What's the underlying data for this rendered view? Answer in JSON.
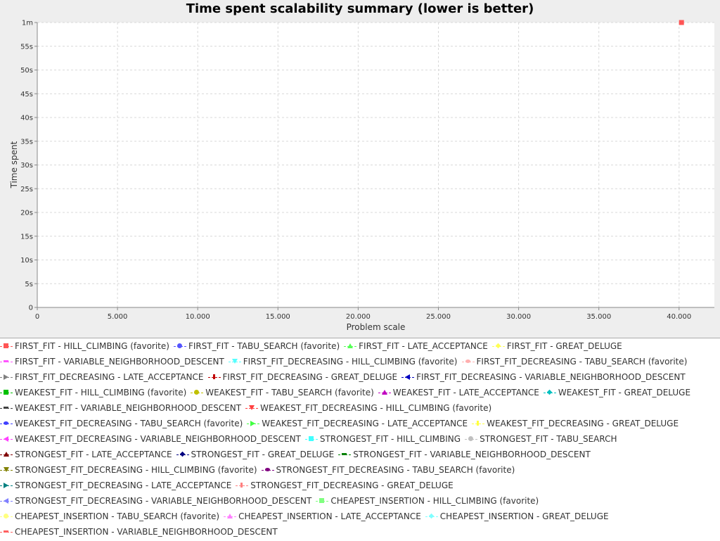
{
  "chart_data": {
    "type": "scatter",
    "title": "Time spent scalability summary (lower is better)",
    "xlabel": "Problem scale",
    "ylabel": "Time spent",
    "xlim": [
      0,
      42200
    ],
    "ylim": [
      0,
      60
    ],
    "x_ticks": [
      {
        "v": 0,
        "label": "0"
      },
      {
        "v": 5000,
        "label": "5.000"
      },
      {
        "v": 10000,
        "label": "10.000"
      },
      {
        "v": 15000,
        "label": "15.000"
      },
      {
        "v": 20000,
        "label": "20.000"
      },
      {
        "v": 25000,
        "label": "25.000"
      },
      {
        "v": 30000,
        "label": "30.000"
      },
      {
        "v": 35000,
        "label": "35.000"
      },
      {
        "v": 40000,
        "label": "40.000"
      }
    ],
    "y_ticks": [
      {
        "v": 0,
        "label": "0"
      },
      {
        "v": 5,
        "label": "5s"
      },
      {
        "v": 10,
        "label": "10s"
      },
      {
        "v": 15,
        "label": "15s"
      },
      {
        "v": 20,
        "label": "20s"
      },
      {
        "v": 25,
        "label": "25s"
      },
      {
        "v": 30,
        "label": "30s"
      },
      {
        "v": 35,
        "label": "35s"
      },
      {
        "v": 40,
        "label": "40s"
      },
      {
        "v": 45,
        "label": "45s"
      },
      {
        "v": 50,
        "label": "50s"
      },
      {
        "v": 55,
        "label": "55s"
      },
      {
        "v": 60,
        "label": "1m"
      }
    ],
    "grid": true,
    "legend_placement": "bottom",
    "series": [
      {
        "name": "FIRST_FIT - HILL_CLIMBING (favorite)",
        "color": "#ff5555",
        "marker": "square",
        "points": [
          [
            40150,
            60
          ]
        ]
      },
      {
        "name": "FIRST_FIT - TABU_SEARCH (favorite)",
        "color": "#5555ff",
        "marker": "circle",
        "points": []
      },
      {
        "name": "FIRST_FIT - LATE_ACCEPTANCE",
        "color": "#55ff55",
        "marker": "triangle-up",
        "points": []
      },
      {
        "name": "FIRST_FIT - GREAT_DELUGE",
        "color": "#ffff55",
        "marker": "diamond",
        "points": []
      },
      {
        "name": "FIRST_FIT - VARIABLE_NEIGHBORHOOD_DESCENT",
        "color": "#ff55ff",
        "marker": "rect-h",
        "points": []
      },
      {
        "name": "FIRST_FIT_DECREASING - HILL_CLIMBING (favorite)",
        "color": "#55ffff",
        "marker": "triangle-down",
        "points": []
      },
      {
        "name": "FIRST_FIT_DECREASING - TABU_SEARCH (favorite)",
        "color": "#ffafaf",
        "marker": "ellipse",
        "points": []
      },
      {
        "name": "FIRST_FIT_DECREASING - LATE_ACCEPTANCE",
        "color": "#808080",
        "marker": "triangle-right",
        "points": []
      },
      {
        "name": "FIRST_FIT_DECREASING - GREAT_DELUGE",
        "color": "#c00000",
        "marker": "rect-v",
        "points": []
      },
      {
        "name": "FIRST_FIT_DECREASING - VARIABLE_NEIGHBORHOOD_DESCENT",
        "color": "#0000c0",
        "marker": "triangle-left",
        "points": []
      },
      {
        "name": "WEAKEST_FIT - HILL_CLIMBING (favorite)",
        "color": "#00c000",
        "marker": "square",
        "points": []
      },
      {
        "name": "WEAKEST_FIT - TABU_SEARCH (favorite)",
        "color": "#c0c000",
        "marker": "circle",
        "points": []
      },
      {
        "name": "WEAKEST_FIT - LATE_ACCEPTANCE",
        "color": "#c000c0",
        "marker": "triangle-up",
        "points": []
      },
      {
        "name": "WEAKEST_FIT - GREAT_DELUGE",
        "color": "#00c0c0",
        "marker": "diamond",
        "points": []
      },
      {
        "name": "WEAKEST_FIT - VARIABLE_NEIGHBORHOOD_DESCENT",
        "color": "#404040",
        "marker": "rect-h",
        "points": []
      },
      {
        "name": "WEAKEST_FIT_DECREASING - HILL_CLIMBING (favorite)",
        "color": "#ff4040",
        "marker": "triangle-down",
        "points": []
      },
      {
        "name": "WEAKEST_FIT_DECREASING - TABU_SEARCH (favorite)",
        "color": "#4040ff",
        "marker": "ellipse",
        "points": []
      },
      {
        "name": "WEAKEST_FIT_DECREASING - LATE_ACCEPTANCE",
        "color": "#40ff40",
        "marker": "triangle-right",
        "points": []
      },
      {
        "name": "WEAKEST_FIT_DECREASING - GREAT_DELUGE",
        "color": "#ffff40",
        "marker": "rect-v",
        "points": []
      },
      {
        "name": "WEAKEST_FIT_DECREASING - VARIABLE_NEIGHBORHOOD_DESCENT",
        "color": "#ff40ff",
        "marker": "triangle-left",
        "points": []
      },
      {
        "name": "STRONGEST_FIT - HILL_CLIMBING",
        "color": "#40ffff",
        "marker": "square",
        "points": []
      },
      {
        "name": "STRONGEST_FIT - TABU_SEARCH",
        "color": "#c0c0c0",
        "marker": "circle",
        "points": []
      },
      {
        "name": "STRONGEST_FIT - LATE_ACCEPTANCE",
        "color": "#800000",
        "marker": "triangle-up",
        "points": []
      },
      {
        "name": "STRONGEST_FIT - GREAT_DELUGE",
        "color": "#000080",
        "marker": "diamond",
        "points": []
      },
      {
        "name": "STRONGEST_FIT - VARIABLE_NEIGHBORHOOD_DESCENT",
        "color": "#008000",
        "marker": "rect-h",
        "points": []
      },
      {
        "name": "STRONGEST_FIT_DECREASING - HILL_CLIMBING (favorite)",
        "color": "#808000",
        "marker": "triangle-down",
        "points": []
      },
      {
        "name": "STRONGEST_FIT_DECREASING - TABU_SEARCH (favorite)",
        "color": "#800080",
        "marker": "ellipse",
        "points": []
      },
      {
        "name": "STRONGEST_FIT_DECREASING - LATE_ACCEPTANCE",
        "color": "#008080",
        "marker": "triangle-right",
        "points": []
      },
      {
        "name": "STRONGEST_FIT_DECREASING - GREAT_DELUGE",
        "color": "#ff8080",
        "marker": "rect-v",
        "points": []
      },
      {
        "name": "STRONGEST_FIT_DECREASING - VARIABLE_NEIGHBORHOOD_DESCENT",
        "color": "#8080ff",
        "marker": "triangle-left",
        "points": []
      },
      {
        "name": "CHEAPEST_INSERTION - HILL_CLIMBING (favorite)",
        "color": "#80ff80",
        "marker": "square",
        "points": []
      },
      {
        "name": "CHEAPEST_INSERTION - TABU_SEARCH (favorite)",
        "color": "#ffff80",
        "marker": "circle",
        "points": []
      },
      {
        "name": "CHEAPEST_INSERTION - LATE_ACCEPTANCE",
        "color": "#ff80ff",
        "marker": "triangle-up",
        "points": []
      },
      {
        "name": "CHEAPEST_INSERTION - GREAT_DELUGE",
        "color": "#80ffff",
        "marker": "diamond",
        "points": []
      },
      {
        "name": "CHEAPEST_INSERTION - VARIABLE_NEIGHBORHOOD_DESCENT",
        "color": "#ff6060",
        "marker": "rect-h",
        "points": []
      }
    ]
  }
}
